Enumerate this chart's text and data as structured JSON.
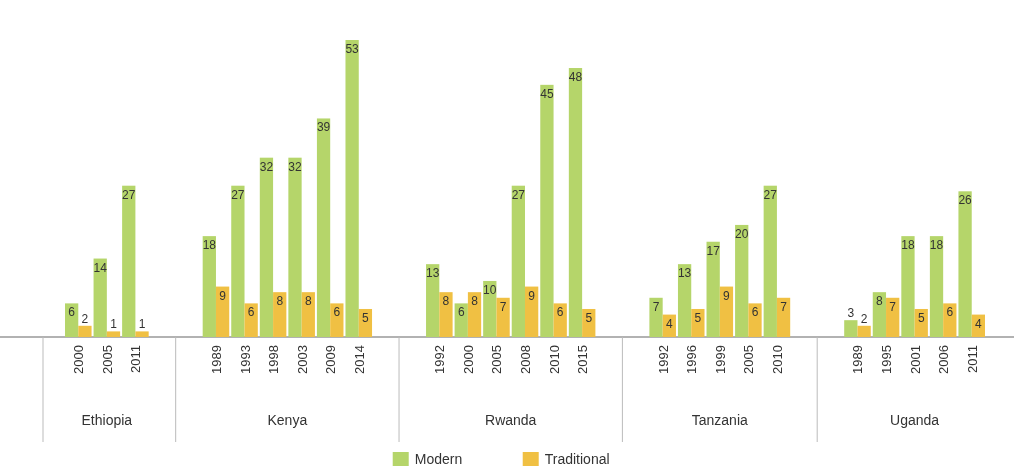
{
  "chart_data": [
    {
      "type": "bar",
      "xlabel": "Ethiopia",
      "categories": [
        "2000",
        "2005",
        "2011"
      ],
      "data_labels": true,
      "series": [
        {
          "color": "#b5d56a",
          "values": [
            6,
            14,
            27
          ]
        },
        {
          "color": "#f0c043",
          "values": [
            2,
            1,
            1
          ]
        }
      ]
    },
    {
      "type": "bar",
      "xlabel": "Kenya",
      "categories": [
        "1989",
        "1993",
        "1998",
        "2003",
        "2009",
        "2014"
      ],
      "data_labels": true,
      "series": [
        {
          "color": "#b5d56a",
          "values": [
            18,
            27,
            32,
            32,
            39,
            53
          ]
        },
        {
          "color": "#f0c043",
          "values": [
            9,
            6,
            8,
            8,
            6,
            5
          ]
        }
      ]
    },
    {
      "type": "bar",
      "xlabel": "Rwanda",
      "categories": [
        "1992",
        "2000",
        "2005",
        "2008",
        "2010",
        "2015"
      ],
      "data_labels": true,
      "legend": "bottom",
      "series": [
        {
          "name": "Modern",
          "color": "#b5d56a",
          "values": [
            13,
            6,
            10,
            27,
            45,
            48
          ]
        },
        {
          "name": "Traditional",
          "color": "#f0c043",
          "values": [
            8,
            8,
            7,
            9,
            6,
            5
          ]
        }
      ]
    },
    {
      "type": "bar",
      "xlabel": "Tanzania",
      "categories": [
        "1992",
        "1996",
        "1999",
        "2005",
        "2010"
      ],
      "data_labels": true,
      "series": [
        {
          "color": "#b5d56a",
          "values": [
            7,
            13,
            17,
            20,
            27
          ]
        },
        {
          "color": "#f0c043",
          "values": [
            4,
            5,
            9,
            6,
            7
          ]
        }
      ]
    },
    {
      "type": "bar",
      "xlabel": "Uganda",
      "categories": [
        "1989",
        "1995",
        "2001",
        "2006",
        "2011"
      ],
      "data_labels": true,
      "series": [
        {
          "color": "#b5d56a",
          "values": [
            3,
            8,
            18,
            18,
            26
          ]
        },
        {
          "color": "#f0c043",
          "values": [
            2,
            7,
            5,
            6,
            4
          ]
        }
      ]
    }
  ]
}
